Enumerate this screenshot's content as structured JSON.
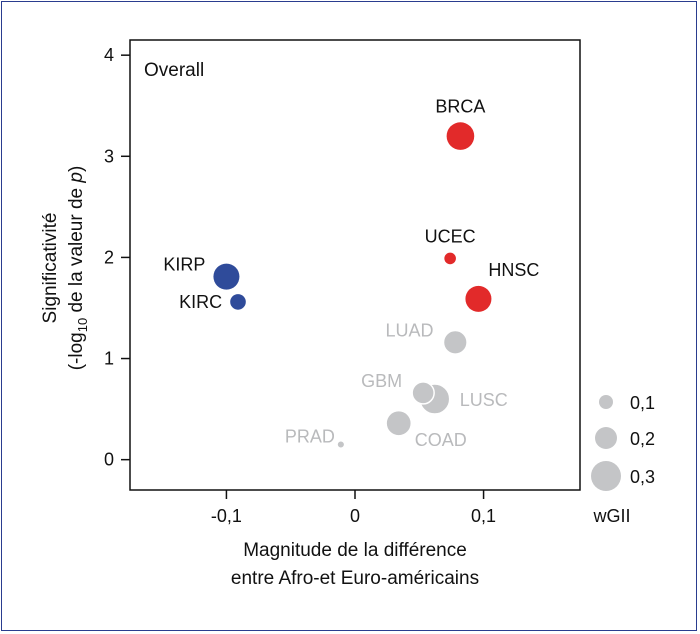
{
  "chart_data": {
    "type": "scatter",
    "panel_label": "Overall",
    "xlabel_lines": [
      "Magnitude de la différence",
      "entre Afro-et Euro-américains"
    ],
    "ylabel_line1": "Significativité",
    "ylabel_line2_pre": "(-log",
    "ylabel_line2_sub": "10",
    "ylabel_line2_mid": " de la valeur de ",
    "ylabel_line2_italic": "p",
    "ylabel_line2_post": ")",
    "xlim": [
      -0.175,
      0.175
    ],
    "ylim": [
      -0.3,
      4.15
    ],
    "x_ticks": [
      {
        "value": -0.1,
        "label": "-0,1"
      },
      {
        "value": 0,
        "label": "0"
      },
      {
        "value": 0.1,
        "label": "0,1"
      }
    ],
    "y_ticks": [
      {
        "value": 0,
        "label": "0"
      },
      {
        "value": 1,
        "label": "1"
      },
      {
        "value": 2,
        "label": "2"
      },
      {
        "value": 3,
        "label": "3"
      },
      {
        "value": 4,
        "label": "4"
      }
    ],
    "colors": {
      "red": "#e22a2a",
      "blue": "#2f4b9a",
      "gray": "#c4c5c7",
      "gray_text": "#b9babc"
    },
    "points": [
      {
        "label": "BRCA",
        "x": 0.082,
        "y": 3.2,
        "wgii": 0.27,
        "color": "red",
        "label_pos": "above"
      },
      {
        "label": "UCEC",
        "x": 0.074,
        "y": 1.99,
        "wgii": 0.07,
        "color": "red",
        "label_pos": "above"
      },
      {
        "label": "HNSC",
        "x": 0.096,
        "y": 1.59,
        "wgii": 0.25,
        "color": "red",
        "label_pos": "above-right"
      },
      {
        "label": "KIRP",
        "x": -0.1,
        "y": 1.81,
        "wgii": 0.25,
        "color": "blue",
        "label_pos": "left"
      },
      {
        "label": "KIRC",
        "x": -0.091,
        "y": 1.56,
        "wgii": 0.12,
        "color": "blue",
        "label_pos": "left"
      },
      {
        "label": "LUAD",
        "x": 0.078,
        "y": 1.16,
        "wgii": 0.22,
        "color": "gray",
        "label_pos": "above-left"
      },
      {
        "label": "GBM",
        "x": 0.053,
        "y": 0.66,
        "wgii": 0.2,
        "color": "gray",
        "label_pos": "above-left"
      },
      {
        "label": "LUSC",
        "x": 0.062,
        "y": 0.6,
        "wgii": 0.3,
        "color": "gray",
        "label_pos": "right"
      },
      {
        "label": "COAD",
        "x": 0.034,
        "y": 0.36,
        "wgii": 0.24,
        "color": "gray",
        "label_pos": "below-right"
      },
      {
        "label": "PRAD",
        "x": -0.011,
        "y": 0.15,
        "wgii": 0.02,
        "color": "gray",
        "label_pos": "left"
      }
    ],
    "size_legend": {
      "title": "wGII",
      "entries": [
        {
          "value": 0.1,
          "label": "0,1"
        },
        {
          "value": 0.2,
          "label": "0,2"
        },
        {
          "value": 0.3,
          "label": "0,3"
        }
      ]
    }
  }
}
